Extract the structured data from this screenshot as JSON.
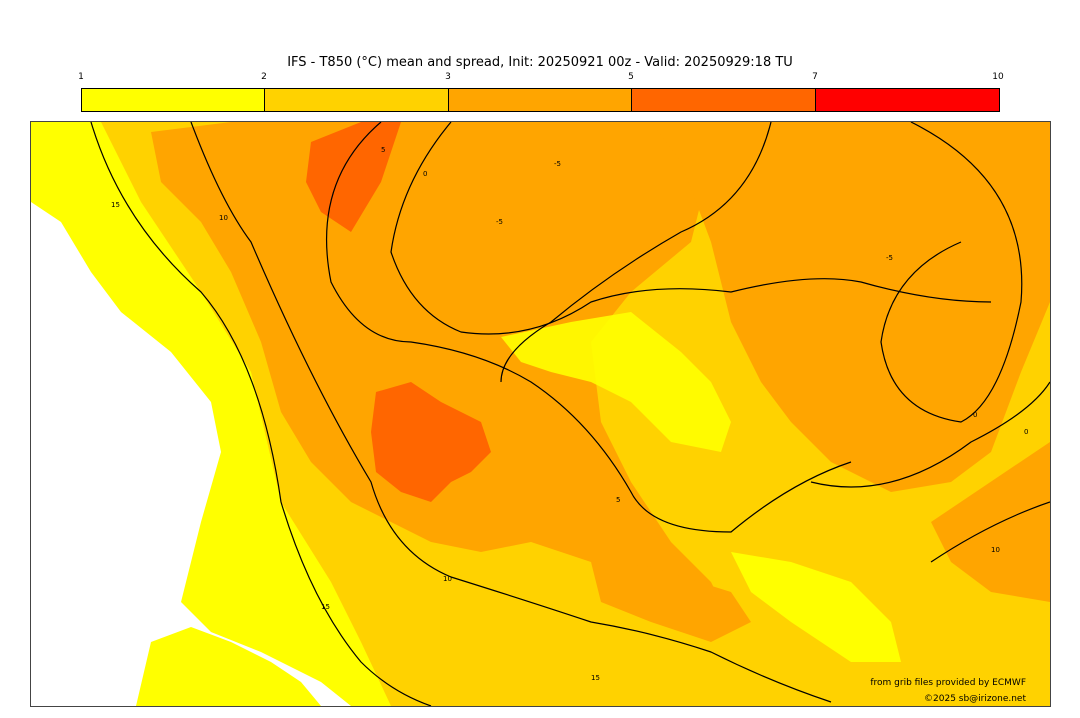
{
  "title": "IFS - T850 (°C) mean and spread, Init: 20250921 00z - Valid: 20250929:18 TU",
  "colorbar": {
    "ticks": [
      "1",
      "2",
      "3",
      "5",
      "7",
      "10"
    ],
    "colors": [
      "#ffff00",
      "#ffd200",
      "#ffa500",
      "#ff6600",
      "#ff0000"
    ]
  },
  "contour_labels": [
    "15",
    "10",
    "5",
    "0",
    "-5",
    "-5",
    "-5",
    "0",
    "0",
    "5",
    "10",
    "15",
    "15",
    "10"
  ],
  "credits": {
    "source": "from grib files provided by ECMWF",
    "copyright": "©2025 sb@irizone.net"
  }
}
